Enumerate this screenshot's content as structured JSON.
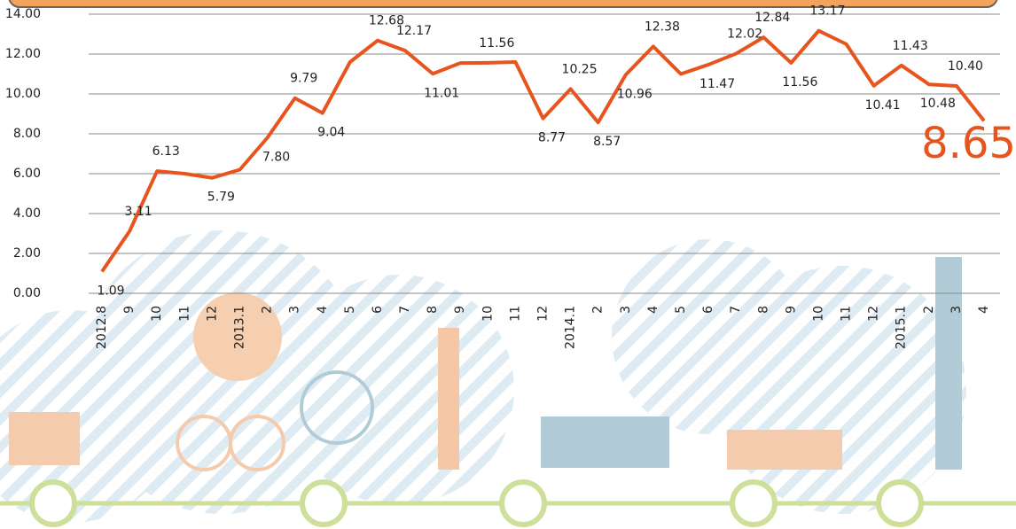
{
  "chart_data": {
    "type": "line",
    "categories": [
      "2012.8",
      "9",
      "10",
      "11",
      "12",
      "2013.1",
      "2",
      "3",
      "4",
      "5",
      "6",
      "7",
      "8",
      "9",
      "10",
      "11",
      "12",
      "2014.1",
      "2",
      "3",
      "4",
      "5",
      "6",
      "7",
      "8",
      "9",
      "10",
      "11",
      "12",
      "2015.1",
      "2",
      "3",
      "4"
    ],
    "values": [
      1.09,
      3.11,
      6.13,
      6.0,
      5.79,
      6.2,
      7.8,
      9.79,
      9.04,
      11.6,
      12.68,
      12.17,
      11.01,
      11.55,
      11.56,
      11.6,
      8.77,
      10.25,
      8.57,
      10.96,
      12.38,
      11.0,
      11.47,
      12.02,
      12.84,
      11.56,
      13.17,
      12.5,
      10.41,
      11.43,
      10.48,
      10.4,
      8.65
    ],
    "value_labels": [
      "1.09",
      "3.11",
      "6.13",
      null,
      "5.79",
      null,
      "7.80",
      "9.79",
      "9.04",
      null,
      "12.68",
      "12.17",
      "11.01",
      null,
      "11.56",
      null,
      "8.77",
      "10.25",
      "8.57",
      "10.96",
      "12.38",
      null,
      "11.47",
      "12.02",
      "12.84",
      "11.56",
      "13.17",
      null,
      "10.41",
      "11.43",
      "10.48",
      "10.40",
      "8.65"
    ],
    "color": "#e8541e",
    "ylim": [
      0,
      14
    ],
    "yticks": [
      {
        "value": 0,
        "label": "0.00"
      },
      {
        "value": 2,
        "label": "2.00"
      },
      {
        "value": 4,
        "label": "4.00"
      },
      {
        "value": 6,
        "label": "6.00"
      },
      {
        "value": 8,
        "label": "8.00"
      },
      {
        "value": 10,
        "label": "10.00"
      },
      {
        "value": 12,
        "label": "12.00"
      },
      {
        "value": 14,
        "label": "14.00"
      }
    ],
    "grid": true
  }
}
